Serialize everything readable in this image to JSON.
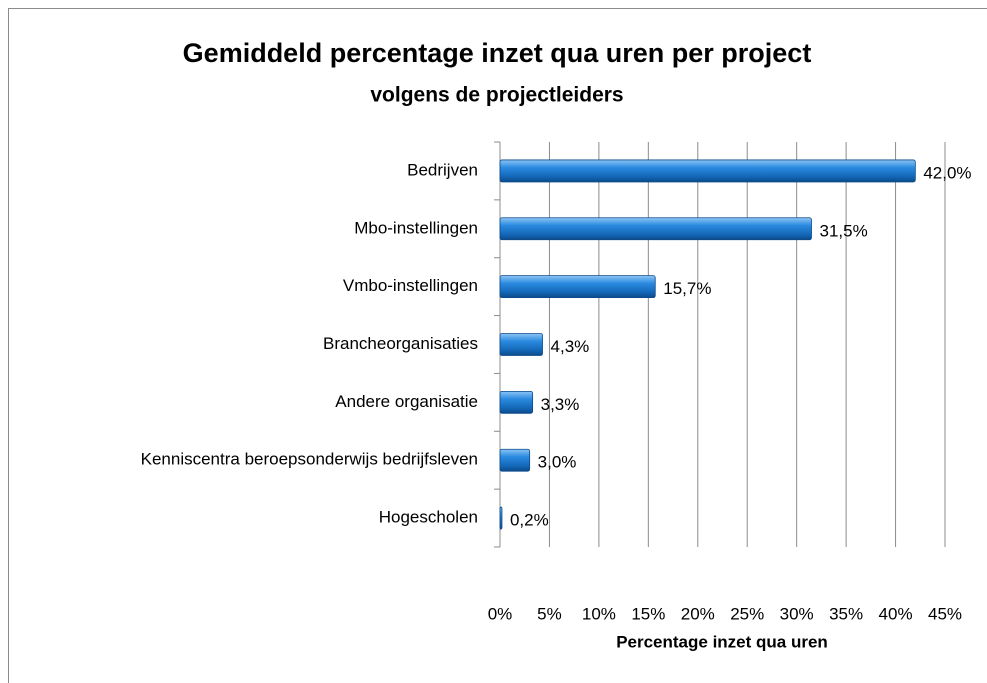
{
  "chart_data": {
    "type": "bar",
    "orientation": "horizontal",
    "title": "Gemiddeld percentage inzet qua uren per project",
    "subtitle": "volgens de projectleiders",
    "x_label": "Percentage inzet qua uren",
    "categories": [
      "Bedrijven",
      "Mbo-instellingen",
      "Vmbo-instellingen",
      "Brancheorganisaties",
      "Andere organisatie",
      "Kenniscentra beroepsonderwijs bedrijfsleven",
      "Hogescholen"
    ],
    "values": [
      42.0,
      31.5,
      15.7,
      4.3,
      3.3,
      3.0,
      0.2
    ],
    "value_labels": [
      "42,0%",
      "31,5%",
      "15,7%",
      "4,3%",
      "3,3%",
      "3,0%",
      "0,2%"
    ],
    "color": "#1f7fd4",
    "xlim": [
      0,
      45
    ],
    "xticks": [
      {
        "value": 0,
        "label": "0%"
      },
      {
        "value": 5,
        "label": "5%"
      },
      {
        "value": 10,
        "label": "10%"
      },
      {
        "value": 15,
        "label": "15%"
      },
      {
        "value": 20,
        "label": "20%"
      },
      {
        "value": 25,
        "label": "25%"
      },
      {
        "value": 30,
        "label": "30%"
      },
      {
        "value": 35,
        "label": "35%"
      },
      {
        "value": 40,
        "label": "40%"
      },
      {
        "value": 45,
        "label": "45%"
      }
    ],
    "grid": true
  }
}
